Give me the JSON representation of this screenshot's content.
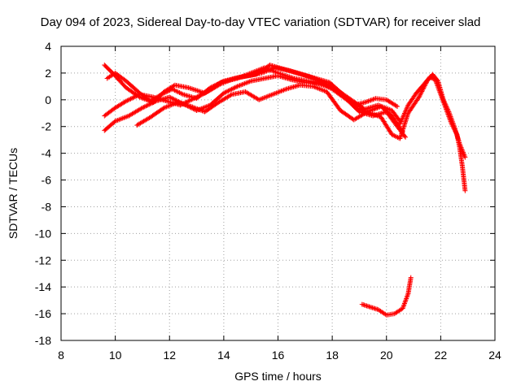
{
  "chart_data": {
    "type": "scatter",
    "title": "Day 094 of 2023, Sidereal Day-to-day VTEC variation (SDTVAR) for receiver slad",
    "xlabel": "GPS time / hours",
    "ylabel": "SDTVAR / TECUs",
    "xlim": [
      8,
      24
    ],
    "ylim": [
      -18,
      4
    ],
    "xticks": [
      8,
      10,
      12,
      14,
      16,
      18,
      20,
      22,
      24
    ],
    "yticks": [
      4,
      2,
      0,
      -2,
      -4,
      -6,
      -8,
      -10,
      -12,
      -14,
      -16,
      -18
    ],
    "grid": true,
    "marker": "+",
    "color": "#ff0000",
    "series": [
      {
        "name": "track-1",
        "x": [
          9.6,
          9.9,
          10.4,
          10.9,
          11.4,
          11.8,
          12.2,
          12.7,
          13.3,
          13.9,
          14.5,
          15.0,
          15.5,
          16.0,
          16.6,
          17.1,
          17.6,
          18.0,
          18.4,
          18.8,
          19.2,
          19.6,
          20.0,
          20.4
        ],
        "y": [
          2.6,
          2.0,
          0.9,
          0.2,
          -0.2,
          0.6,
          1.1,
          0.9,
          0.5,
          1.3,
          1.6,
          2.0,
          2.4,
          2.0,
          1.6,
          1.4,
          1.2,
          0.8,
          0.2,
          -0.4,
          -0.2,
          0.1,
          0.0,
          -0.5
        ]
      },
      {
        "name": "track-2",
        "x": [
          9.7,
          10.0,
          10.4,
          10.9,
          11.3,
          11.7,
          12.1,
          12.5,
          13.0,
          13.5,
          14.0,
          14.6,
          15.2,
          15.7,
          16.2,
          16.7,
          17.2,
          17.7,
          18.2,
          18.7,
          19.2,
          19.7,
          20.2,
          20.5
        ],
        "y": [
          1.6,
          2.0,
          1.4,
          0.5,
          -0.1,
          0.4,
          0.8,
          0.4,
          0.1,
          0.9,
          1.4,
          1.7,
          1.9,
          2.6,
          2.3,
          2.0,
          1.7,
          1.3,
          0.7,
          0.0,
          -0.7,
          -0.4,
          -0.8,
          -1.6
        ]
      },
      {
        "name": "track-3",
        "x": [
          9.6,
          10.0,
          10.4,
          10.9,
          11.4,
          11.9,
          12.4,
          12.9,
          13.4,
          13.9,
          14.4,
          14.9,
          15.4,
          15.9,
          16.4,
          16.9,
          17.4,
          17.9,
          18.4,
          18.9,
          19.3,
          19.8,
          20.2,
          20.6
        ],
        "y": [
          -1.2,
          -0.6,
          -0.1,
          0.4,
          0.2,
          -0.1,
          -0.4,
          0.1,
          0.6,
          1.2,
          1.6,
          1.8,
          2.0,
          2.4,
          2.2,
          1.9,
          1.6,
          1.3,
          0.4,
          -0.6,
          -0.9,
          -0.5,
          -1.2,
          -2.4
        ]
      },
      {
        "name": "track-4",
        "x": [
          9.6,
          10.0,
          10.5,
          11.0,
          11.5,
          12.0,
          12.5,
          13.0,
          13.5,
          14.0,
          14.5,
          15.0,
          15.5,
          16.0,
          16.5,
          17.0,
          17.5,
          18.0,
          18.5,
          19.0,
          19.5,
          20.0,
          20.4,
          20.7
        ],
        "y": [
          -2.3,
          -1.6,
          -1.2,
          -0.6,
          -0.1,
          0.2,
          -0.3,
          -0.8,
          -0.4,
          0.5,
          1.0,
          1.4,
          1.6,
          1.8,
          1.5,
          1.3,
          1.2,
          0.9,
          0.1,
          -0.9,
          -1.2,
          -0.9,
          -2.0,
          -2.8
        ]
      },
      {
        "name": "track-5",
        "x": [
          10.8,
          11.3,
          11.8,
          12.3,
          12.8,
          13.3,
          13.8,
          14.3,
          14.8,
          15.3,
          15.8,
          16.3,
          16.8,
          17.3,
          17.8,
          18.3,
          18.8,
          19.3,
          19.8,
          20.2,
          20.5,
          20.8,
          21.2,
          21.5,
          21.7,
          21.9,
          22.1,
          22.3,
          22.5,
          22.7,
          22.9
        ],
        "y": [
          -1.9,
          -1.3,
          -0.6,
          -0.2,
          -0.5,
          -0.9,
          -0.2,
          0.4,
          0.6,
          0.0,
          0.4,
          0.8,
          1.1,
          1.0,
          0.6,
          -0.8,
          -1.5,
          -0.9,
          -1.3,
          -2.6,
          -2.9,
          -1.0,
          0.2,
          1.4,
          1.9,
          1.4,
          0.0,
          -0.9,
          -2.0,
          -3.3,
          -4.3
        ]
      },
      {
        "name": "track-6",
        "x": [
          20.5,
          20.8,
          21.1,
          21.4,
          21.6,
          21.8,
          22.0,
          22.2,
          22.4,
          22.6,
          22.7,
          22.8,
          22.9
        ],
        "y": [
          -1.8,
          -0.4,
          0.5,
          1.2,
          1.7,
          1.5,
          0.4,
          -0.7,
          -1.8,
          -2.6,
          -3.6,
          -5.0,
          -6.8
        ]
      },
      {
        "name": "track-7",
        "x": [
          19.1,
          19.4,
          19.7,
          20.0,
          20.3,
          20.6,
          20.8,
          20.9
        ],
        "y": [
          -15.3,
          -15.5,
          -15.7,
          -16.1,
          -16.0,
          -15.6,
          -14.5,
          -13.3
        ]
      }
    ]
  }
}
